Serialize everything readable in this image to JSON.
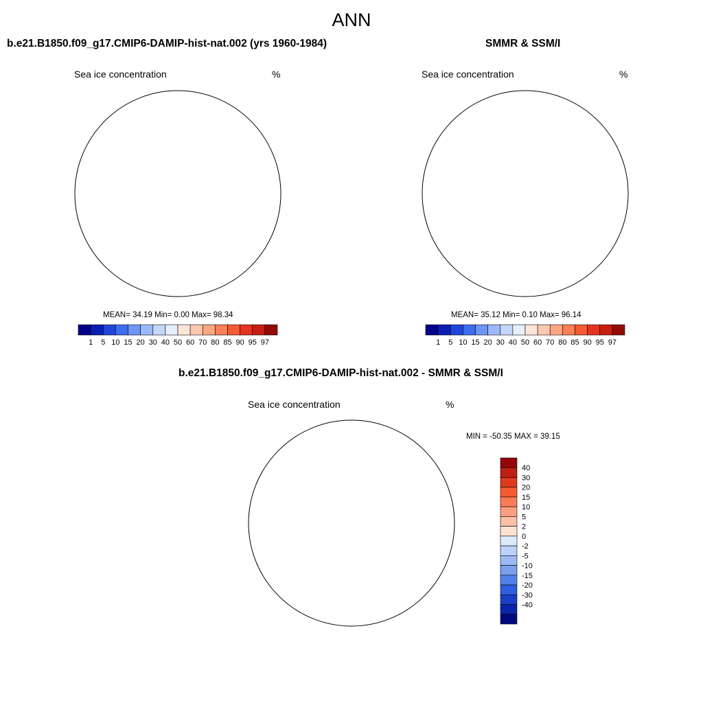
{
  "figure": {
    "season": "ANN"
  },
  "panels": [
    {
      "title": "b.e21.B1850.f09_g17.CMIP6-DAMIP-hist-nat.002 (yrs 1960-1984)",
      "variable": "Sea ice concentration",
      "units": "%",
      "stats": "MEAN=  34.19  Min=   0.00  Max=  98.34"
    },
    {
      "title": "SMMR & SSM/I",
      "variable": "Sea ice concentration",
      "units": "%",
      "stats": "MEAN=  35.12  Min=   0.10  Max=  96.14"
    },
    {
      "title": "b.e21.B1850.f09_g17.CMIP6-DAMIP-hist-nat.002 - SMMR & SSM/I",
      "variable": "Sea ice concentration",
      "units": "%",
      "stats": "MIN = -50.35 MAX =  39.15"
    }
  ],
  "colorbar_concentration": {
    "colors": [
      "#00008c",
      "#0a1eb4",
      "#1e46dc",
      "#3c6ef0",
      "#6e96f5",
      "#9bb9fa",
      "#c3d7fa",
      "#e6f0fc",
      "#fde6d7",
      "#fcc8af",
      "#fca682",
      "#fa8055",
      "#f55a32",
      "#e6321e",
      "#c81e0f",
      "#960a05"
    ],
    "labels": [
      "1",
      "5",
      "10",
      "15",
      "20",
      "30",
      "40",
      "50",
      "60",
      "70",
      "80",
      "85",
      "90",
      "95",
      "97"
    ]
  },
  "colorbar_difference": {
    "colors": [
      "#96050a",
      "#c0200f",
      "#e03a1c",
      "#f55a30",
      "#fa7c55",
      "#fb9e80",
      "#fcc0a5",
      "#fde2d0",
      "#dce9fb",
      "#bcd3f8",
      "#9bbaf5",
      "#789ff0",
      "#5280ea",
      "#2e5fe0",
      "#1840c8",
      "#0a25a8",
      "#000a80"
    ],
    "labels": [
      "40",
      "30",
      "20",
      "15",
      "10",
      "5",
      "2",
      "0",
      "-2",
      "-5",
      "-10",
      "-15",
      "-20",
      "-30",
      "-40"
    ]
  },
  "chart_data": [
    {
      "type": "heatmap",
      "title": "b.e21.B1850.f09_g17.CMIP6-DAMIP-hist-nat.002 (yrs 1960-1984)",
      "variable": "Sea ice concentration",
      "units": "%",
      "mean": 34.19,
      "min": 0.0,
      "max": 98.34,
      "levels": [
        1,
        5,
        10,
        15,
        20,
        30,
        40,
        50,
        60,
        70,
        80,
        85,
        90,
        95,
        97
      ]
    },
    {
      "type": "heatmap",
      "title": "SMMR & SSM/I",
      "variable": "Sea ice concentration",
      "units": "%",
      "mean": 35.12,
      "min": 0.1,
      "max": 96.14,
      "levels": [
        1,
        5,
        10,
        15,
        20,
        30,
        40,
        50,
        60,
        70,
        80,
        85,
        90,
        95,
        97
      ]
    },
    {
      "type": "heatmap",
      "title": "b.e21.B1850.f09_g17.CMIP6-DAMIP-hist-nat.002 - SMMR & SSM/I",
      "variable": "Sea ice concentration",
      "units": "%",
      "min": -50.35,
      "max": 39.15,
      "levels": [
        -40,
        -30,
        -20,
        -15,
        -10,
        -5,
        -2,
        0,
        2,
        5,
        10,
        15,
        20,
        30,
        40
      ]
    }
  ]
}
